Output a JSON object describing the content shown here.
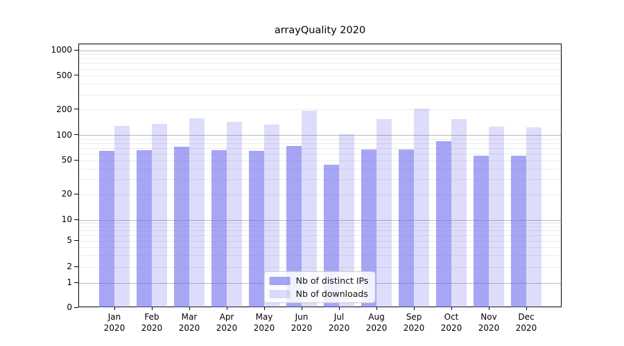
{
  "chart_data": {
    "type": "bar",
    "title": "arrayQuality 2020",
    "categories": [
      "Jan 2020",
      "Feb 2020",
      "Mar 2020",
      "Apr 2020",
      "May 2020",
      "Jun 2020",
      "Jul 2020",
      "Aug 2020",
      "Sep 2020",
      "Oct 2020",
      "Nov 2020",
      "Dec 2020"
    ],
    "series": [
      {
        "name": "Nb of distinct IPs",
        "color": "#6666ee",
        "alpha": 0.58,
        "values": [
          66,
          67,
          73,
          67,
          66,
          75,
          45,
          68,
          68,
          86,
          57,
          57
        ]
      },
      {
        "name": "Nb of downloads",
        "color": "#6666ee",
        "alpha": 0.22,
        "values": [
          129,
          136,
          158,
          144,
          133,
          196,
          103,
          156,
          208,
          156,
          127,
          124
        ]
      }
    ],
    "y_axis": {
      "scale": "log-like",
      "ticks": [
        0,
        1,
        2,
        5,
        10,
        20,
        50,
        100,
        200,
        500,
        1000
      ],
      "minor_ticks": [
        3,
        4,
        6,
        7,
        8,
        9,
        30,
        40,
        60,
        70,
        80,
        90,
        300,
        400,
        600,
        700,
        800,
        900
      ],
      "range": [
        0,
        1200
      ]
    },
    "x_axis": {
      "label": ""
    },
    "legend": {
      "position": "bottom-center"
    },
    "grid": true,
    "colors": {
      "bar_ips_rendered": "#a6a6f5",
      "bar_downloads_rendered": "#dcdcfa",
      "grid_major": "#b9b9b9",
      "grid_minor": "#ebebeb",
      "spine": "#000000"
    }
  }
}
